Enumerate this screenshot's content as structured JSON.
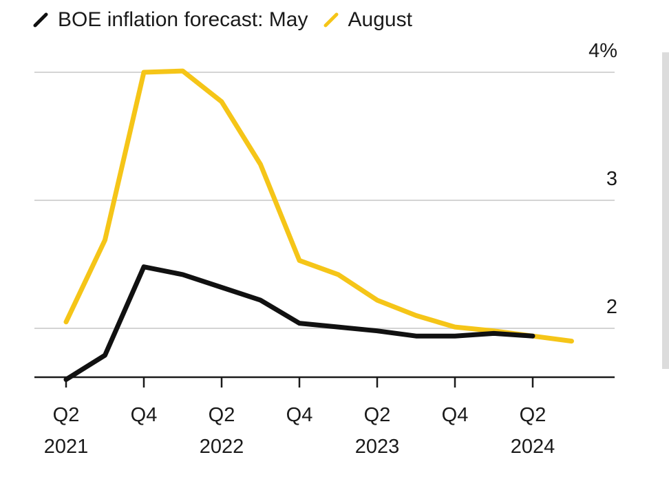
{
  "chart_data": {
    "type": "line",
    "title": "",
    "legend": {
      "placement": "top-left"
    },
    "categories": [
      "Q2 2021",
      "Q3 2021",
      "Q4 2021",
      "Q1 2022",
      "Q2 2022",
      "Q3 2022",
      "Q4 2022",
      "Q1 2023",
      "Q2 2023",
      "Q3 2023",
      "Q4 2023",
      "Q1 2024",
      "Q2 2024",
      "Q3 2024"
    ],
    "x_ticks": [
      {
        "index": 0,
        "q": "Q2",
        "year": "2021"
      },
      {
        "index": 2,
        "q": "Q4",
        "year": ""
      },
      {
        "index": 4,
        "q": "Q2",
        "year": "2022"
      },
      {
        "index": 6,
        "q": "Q4",
        "year": ""
      },
      {
        "index": 8,
        "q": "Q2",
        "year": "2023"
      },
      {
        "index": 10,
        "q": "Q4",
        "year": ""
      },
      {
        "index": 12,
        "q": "Q2",
        "year": "2024"
      }
    ],
    "y_ticks": [
      {
        "value": 2,
        "label": "2"
      },
      {
        "value": 3,
        "label": "3"
      },
      {
        "value": 4,
        "label": "4%"
      }
    ],
    "ylim": [
      1.62,
      4.0
    ],
    "grid": true,
    "series": [
      {
        "name": "BOE inflation forecast: May",
        "color": "#111111",
        "values": [
          1.6,
          1.79,
          2.48,
          2.42,
          2.32,
          2.22,
          2.04,
          2.01,
          1.98,
          1.94,
          1.94,
          1.96,
          1.94,
          null
        ]
      },
      {
        "name": "August",
        "color": "#f5c518",
        "values": [
          2.05,
          2.69,
          4.0,
          4.01,
          3.77,
          3.28,
          2.53,
          2.42,
          2.22,
          2.1,
          2.01,
          1.98,
          1.94,
          1.9
        ]
      }
    ]
  }
}
